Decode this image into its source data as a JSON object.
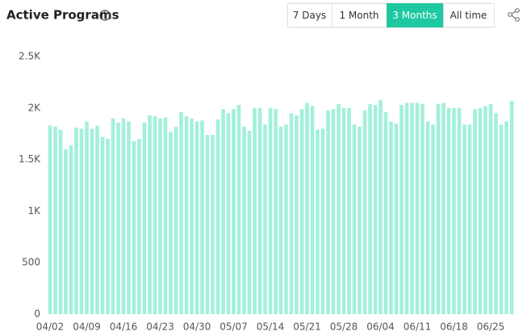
{
  "chart_data": {
    "type": "bar",
    "title": "Active Programs",
    "color": "#a3f0db",
    "categories": [
      "04/02",
      null,
      null,
      null,
      null,
      null,
      null,
      "04/09",
      null,
      null,
      null,
      null,
      null,
      null,
      "04/16",
      null,
      null,
      null,
      null,
      null,
      null,
      "04/23",
      null,
      null,
      null,
      null,
      null,
      null,
      "04/30",
      null,
      null,
      null,
      null,
      null,
      null,
      "05/07",
      null,
      null,
      null,
      null,
      null,
      null,
      "05/14",
      null,
      null,
      null,
      null,
      null,
      null,
      "05/21",
      null,
      null,
      null,
      null,
      null,
      null,
      "05/28",
      null,
      null,
      null,
      null,
      null,
      null,
      "06/04",
      null,
      null,
      null,
      null,
      null,
      null,
      "06/11",
      null,
      null,
      null,
      null,
      null,
      null,
      "06/18",
      null,
      null,
      null,
      null,
      null,
      null,
      "06/25",
      null,
      null,
      null,
      null
    ],
    "values": [
      1830,
      1820,
      1790,
      1600,
      1640,
      1810,
      1800,
      1870,
      1800,
      1830,
      1720,
      1700,
      1900,
      1860,
      1900,
      1870,
      1680,
      1700,
      1860,
      1930,
      1920,
      1900,
      1910,
      1770,
      1820,
      1960,
      1920,
      1900,
      1870,
      1880,
      1740,
      1740,
      1890,
      1990,
      1950,
      1990,
      2030,
      1820,
      1780,
      2000,
      2000,
      1840,
      2000,
      1990,
      1820,
      1840,
      1950,
      1930,
      1990,
      2050,
      2020,
      1790,
      1800,
      1980,
      1990,
      2040,
      2000,
      2000,
      1840,
      1820,
      1980,
      2040,
      2030,
      2080,
      1960,
      1870,
      1850,
      2030,
      2050,
      2050,
      2050,
      2040,
      1870,
      1840,
      2040,
      2050,
      2000,
      2000,
      2000,
      1840,
      1840,
      1990,
      2000,
      2020,
      2040,
      1950,
      1840,
      1870,
      2070
    ],
    "ylim": [
      0,
      2500
    ],
    "yticks": [
      0,
      500,
      {
        "value": 1000,
        "label": "1K"
      },
      {
        "value": 1500,
        "label": "1.5K"
      },
      {
        "value": 2000,
        "label": "2K"
      },
      {
        "value": 2500,
        "label": "2.5K"
      }
    ],
    "grid": false
  },
  "range_buttons": [
    "7 Days",
    "1 Month",
    "3 Months",
    "All time"
  ],
  "selected_range": 2
}
